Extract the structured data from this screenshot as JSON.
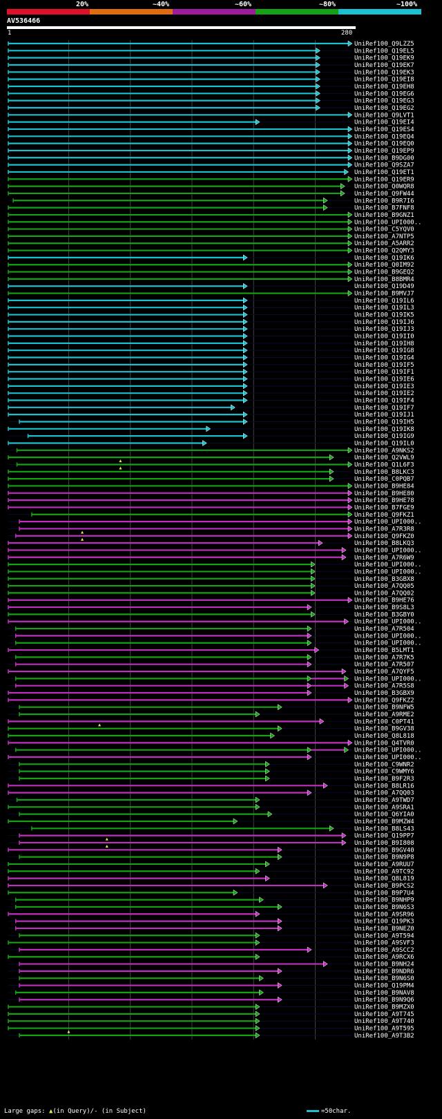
{
  "legend": [
    {
      "label": "20%",
      "color": "#e0102a"
    },
    {
      "label": "~40%",
      "color": "#e06c10"
    },
    {
      "label": "~60%",
      "color": "#9c1c9c"
    },
    {
      "label": "~80%",
      "color": "#15a315"
    },
    {
      "label": "~100%",
      "color": "#1bc1cf"
    }
  ],
  "query": {
    "name": "AV536466",
    "start_label": "1",
    "end_label": "280",
    "length": 280
  },
  "colors": {
    "cyan": "#1bc1cf",
    "green": "#15a315",
    "magenta": "#c02fc0",
    "gap": "#e8e85c",
    "grid": "#444444"
  },
  "grid_lines": [
    50,
    100,
    150,
    200,
    250
  ],
  "hits": [
    {
      "name": "UniRef100_Q9LZZ5",
      "color": "cyan",
      "start": 1,
      "end": 280
    },
    {
      "name": "UniRef100_Q19EL5",
      "color": "cyan",
      "start": 1,
      "end": 254
    },
    {
      "name": "UniRef100_Q19EK9",
      "color": "cyan",
      "start": 1,
      "end": 254
    },
    {
      "name": "UniRef100_Q19EK7",
      "color": "cyan",
      "start": 1,
      "end": 254
    },
    {
      "name": "UniRef100_Q19EK3",
      "color": "cyan",
      "start": 1,
      "end": 254
    },
    {
      "name": "UniRef100_Q19EI8",
      "color": "cyan",
      "start": 1,
      "end": 254
    },
    {
      "name": "UniRef100_Q19EH8",
      "color": "cyan",
      "start": 1,
      "end": 254
    },
    {
      "name": "UniRef100_Q19EG6",
      "color": "cyan",
      "start": 1,
      "end": 254
    },
    {
      "name": "UniRef100_Q19EG3",
      "color": "cyan",
      "start": 1,
      "end": 254
    },
    {
      "name": "UniRef100_Q19EG2",
      "color": "cyan",
      "start": 1,
      "end": 254
    },
    {
      "name": "UniRef100_Q9LVT1",
      "color": "cyan",
      "start": 1,
      "end": 280
    },
    {
      "name": "UniRef100_Q19EI4",
      "color": "cyan",
      "start": 1,
      "end": 205
    },
    {
      "name": "UniRef100_Q19ES4",
      "color": "cyan",
      "start": 1,
      "end": 280
    },
    {
      "name": "UniRef100_Q19EQ4",
      "color": "cyan",
      "start": 1,
      "end": 280
    },
    {
      "name": "UniRef100_Q19EQ0",
      "color": "cyan",
      "start": 1,
      "end": 280
    },
    {
      "name": "UniRef100_Q19EP9",
      "color": "cyan",
      "start": 1,
      "end": 280
    },
    {
      "name": "UniRef100_B9DG00",
      "color": "cyan",
      "start": 1,
      "end": 280
    },
    {
      "name": "UniRef100_Q9SZA7",
      "color": "cyan",
      "start": 1,
      "end": 280
    },
    {
      "name": "UniRef100_Q19ET1",
      "color": "cyan",
      "start": 1,
      "end": 277
    },
    {
      "name": "UniRef100_Q19ER9",
      "color": "green",
      "start": 1,
      "end": 280
    },
    {
      "name": "UniRef100_Q0WQR8",
      "color": "green",
      "start": 1,
      "end": 274
    },
    {
      "name": "UniRef100_Q9FW44",
      "color": "green",
      "start": 1,
      "end": 274
    },
    {
      "name": "UniRef100_B9R7I6",
      "color": "green",
      "start": 5,
      "end": 260
    },
    {
      "name": "UniRef100_B7FNF8",
      "color": "green",
      "start": 1,
      "end": 260
    },
    {
      "name": "UniRef100_B9GNZ1",
      "color": "green",
      "start": 1,
      "end": 280
    },
    {
      "name": "UniRef100_UPI000..",
      "color": "green",
      "start": 1,
      "end": 280
    },
    {
      "name": "UniRef100_C5YQV0",
      "color": "green",
      "start": 1,
      "end": 280
    },
    {
      "name": "UniRef100_A7NTP5",
      "color": "green",
      "start": 1,
      "end": 280
    },
    {
      "name": "UniRef100_A5ARR2",
      "color": "green",
      "start": 1,
      "end": 280
    },
    {
      "name": "UniRef100_Q2QMY3",
      "color": "green",
      "start": 1,
      "end": 280
    },
    {
      "name": "UniRef100_Q19IK6",
      "color": "cyan",
      "start": 1,
      "end": 195
    },
    {
      "name": "UniRef100_Q0IM92",
      "color": "green",
      "start": 1,
      "end": 280
    },
    {
      "name": "UniRef100_B9GEQ2",
      "color": "green",
      "start": 1,
      "end": 280
    },
    {
      "name": "UniRef100_B8BMR4",
      "color": "green",
      "start": 1,
      "end": 280
    },
    {
      "name": "UniRef100_Q19D49",
      "color": "cyan",
      "start": 1,
      "end": 195
    },
    {
      "name": "UniRef100_B9MVJ7",
      "color": "green",
      "start": 1,
      "end": 280
    },
    {
      "name": "UniRef100_Q19IL6",
      "color": "cyan",
      "start": 1,
      "end": 195
    },
    {
      "name": "UniRef100_Q19IL3",
      "color": "cyan",
      "start": 1,
      "end": 195
    },
    {
      "name": "UniRef100_Q19IK5",
      "color": "cyan",
      "start": 1,
      "end": 195
    },
    {
      "name": "UniRef100_Q19IJ6",
      "color": "cyan",
      "start": 1,
      "end": 195
    },
    {
      "name": "UniRef100_Q19IJ3",
      "color": "cyan",
      "start": 1,
      "end": 195
    },
    {
      "name": "UniRef100_Q19II0",
      "color": "cyan",
      "start": 1,
      "end": 195
    },
    {
      "name": "UniRef100_Q19IH8",
      "color": "cyan",
      "start": 1,
      "end": 195
    },
    {
      "name": "UniRef100_Q19IG8",
      "color": "cyan",
      "start": 1,
      "end": 195
    },
    {
      "name": "UniRef100_Q19IG4",
      "color": "cyan",
      "start": 1,
      "end": 195
    },
    {
      "name": "UniRef100_Q19IF5",
      "color": "cyan",
      "start": 1,
      "end": 195
    },
    {
      "name": "UniRef100_Q19IF1",
      "color": "cyan",
      "start": 1,
      "end": 195
    },
    {
      "name": "UniRef100_Q19IE6",
      "color": "cyan",
      "start": 1,
      "end": 195
    },
    {
      "name": "UniRef100_Q19IE3",
      "color": "cyan",
      "start": 1,
      "end": 195
    },
    {
      "name": "UniRef100_Q19IE2",
      "color": "cyan",
      "start": 1,
      "end": 195
    },
    {
      "name": "UniRef100_Q19IF4",
      "color": "cyan",
      "start": 1,
      "end": 195
    },
    {
      "name": "UniRef100_Q19IF7",
      "color": "cyan",
      "start": 1,
      "end": 185
    },
    {
      "name": "UniRef100_Q19IJ1",
      "color": "cyan",
      "start": 1,
      "end": 195
    },
    {
      "name": "UniRef100_Q19IH5",
      "color": "cyan",
      "start": 10,
      "end": 195
    },
    {
      "name": "UniRef100_Q19IK8",
      "color": "cyan",
      "start": 1,
      "end": 165
    },
    {
      "name": "UniRef100_Q19IG9",
      "color": "cyan",
      "start": 17,
      "end": 195
    },
    {
      "name": "UniRef100_Q19IL0",
      "color": "cyan",
      "start": 1,
      "end": 162
    },
    {
      "name": "UniRef100_A9NKS2",
      "color": "green",
      "start": 8,
      "end": 280
    },
    {
      "name": "UniRef100_Q2VWL9",
      "color": "green",
      "start": 1,
      "end": 265,
      "gap": 92
    },
    {
      "name": "UniRef100_Q1L6F3",
      "color": "green",
      "start": 8,
      "end": 280,
      "gap": 92
    },
    {
      "name": "UniRef100_B8LKC3",
      "color": "green",
      "start": 1,
      "end": 265
    },
    {
      "name": "UniRef100_C0PQB7",
      "color": "green",
      "start": 1,
      "end": 265
    },
    {
      "name": "UniRef100_B9HE84",
      "color": "green",
      "start": 1,
      "end": 280
    },
    {
      "name": "UniRef100_B9HE80",
      "color": "magenta",
      "start": 1,
      "end": 280
    },
    {
      "name": "UniRef100_B9HE78",
      "color": "magenta",
      "start": 1,
      "end": 280
    },
    {
      "name": "UniRef100_B7FGE9",
      "color": "magenta",
      "start": 1,
      "end": 280
    },
    {
      "name": "UniRef100_Q9FKZ1",
      "color": "green",
      "start": 20,
      "end": 280
    },
    {
      "name": "UniRef100_UPI000..",
      "color": "magenta",
      "start": 10,
      "end": 280
    },
    {
      "name": "UniRef100_A7R3R8",
      "color": "magenta",
      "start": 10,
      "end": 280,
      "gap": 61
    },
    {
      "name": "UniRef100_Q9FKZ0",
      "color": "magenta",
      "start": 7,
      "end": 280,
      "gap": 61
    },
    {
      "name": "UniRef100_B8LKQ3",
      "color": "magenta",
      "start": 1,
      "end": 256
    },
    {
      "name": "UniRef100_UPI000..",
      "color": "magenta",
      "start": 1,
      "end": 275
    },
    {
      "name": "UniRef100_A7R6W9",
      "color": "magenta",
      "start": 1,
      "end": 275
    },
    {
      "name": "UniRef100_UPI000..",
      "color": "green",
      "start": 1,
      "end": 250
    },
    {
      "name": "UniRef100_UPI000..",
      "color": "green",
      "start": 1,
      "end": 250
    },
    {
      "name": "UniRef100_B3GBX8",
      "color": "green",
      "start": 1,
      "end": 250
    },
    {
      "name": "UniRef100_A7QQ05",
      "color": "green",
      "start": 1,
      "end": 250
    },
    {
      "name": "UniRef100_A7QQ02",
      "color": "green",
      "start": 1,
      "end": 250
    },
    {
      "name": "UniRef100_B9HE76",
      "color": "magenta",
      "start": 1,
      "end": 280
    },
    {
      "name": "UniRef100_B9S8L3",
      "color": "magenta",
      "start": 1,
      "end": 247
    },
    {
      "name": "UniRef100_B3GBY0",
      "color": "green",
      "start": 1,
      "end": 250
    },
    {
      "name": "UniRef100_UPI000..",
      "color": "magenta",
      "start": 1,
      "end": 277
    },
    {
      "name": "UniRef100_A7R504",
      "color": "green",
      "start": 7,
      "end": 247
    },
    {
      "name": "UniRef100_UPI000..",
      "color": "magenta",
      "start": 7,
      "end": 247
    },
    {
      "name": "UniRef100_UPI000..",
      "color": "green",
      "start": 7,
      "end": 247
    },
    {
      "name": "UniRef100_B5LMT1",
      "color": "magenta",
      "start": 1,
      "end": 253
    },
    {
      "name": "UniRef100_A7R7K5",
      "color": "green",
      "start": 7,
      "end": 247
    },
    {
      "name": "UniRef100_A7R507",
      "color": "magenta",
      "start": 7,
      "end": 247
    },
    {
      "name": "UniRef100_A7QYF5",
      "color": "magenta",
      "start": 1,
      "end": 275
    },
    {
      "name": "UniRef100_UPI000..",
      "color": "green",
      "start": 7,
      "end": 247,
      "end2": 277
    },
    {
      "name": "UniRef100_A7R5S8",
      "color": "magenta",
      "start": 7,
      "end": 247,
      "end2": 277
    },
    {
      "name": "UniRef100_B3GBX9",
      "color": "magenta",
      "start": 1,
      "end": 247
    },
    {
      "name": "UniRef100_Q9FKZ2",
      "color": "magenta",
      "start": 1,
      "end": 280
    },
    {
      "name": "UniRef100_B9NFW5",
      "color": "green",
      "start": 10,
      "end": 223
    },
    {
      "name": "UniRef100_A9RME2",
      "color": "green",
      "start": 10,
      "end": 205
    },
    {
      "name": "UniRef100_C0PT41",
      "color": "magenta",
      "start": 1,
      "end": 257,
      "gap": 75
    },
    {
      "name": "UniRef100_B9GV38",
      "color": "green",
      "start": 1,
      "end": 223
    },
    {
      "name": "UniRef100_Q8L818",
      "color": "green",
      "start": 1,
      "end": 217
    },
    {
      "name": "UniRef100_Q4TVR0",
      "color": "magenta",
      "start": 1,
      "end": 280
    },
    {
      "name": "UniRef100_UPI000..",
      "color": "green",
      "start": 7,
      "end": 247,
      "end2": 277
    },
    {
      "name": "UniRef100_UPI000..",
      "color": "magenta",
      "start": 1,
      "end": 247
    },
    {
      "name": "UniRef100_C9WNR2",
      "color": "green",
      "start": 10,
      "end": 213
    },
    {
      "name": "UniRef100_C9WMY6",
      "color": "green",
      "start": 10,
      "end": 213
    },
    {
      "name": "UniRef100_B9F2R3",
      "color": "green",
      "start": 10,
      "end": 213
    },
    {
      "name": "UniRef100_B8LR16",
      "color": "magenta",
      "start": 1,
      "end": 260
    },
    {
      "name": "UniRef100_A7QQ03",
      "color": "magenta",
      "start": 1,
      "end": 247
    },
    {
      "name": "UniRef100_A9TWD7",
      "color": "green",
      "start": 8,
      "end": 205
    },
    {
      "name": "UniRef100_A9SRA1",
      "color": "green",
      "start": 1,
      "end": 205
    },
    {
      "name": "UniRef100_Q6YIA0",
      "color": "green",
      "start": 10,
      "end": 215
    },
    {
      "name": "UniRef100_B9MZW4",
      "color": "green",
      "start": 1,
      "end": 187
    },
    {
      "name": "UniRef100_B8LS43",
      "color": "green",
      "start": 20,
      "end": 265
    },
    {
      "name": "UniRef100_Q19PP7",
      "color": "magenta",
      "start": 10,
      "end": 275,
      "gap": 81
    },
    {
      "name": "UniRef100_B9I808",
      "color": "magenta",
      "start": 10,
      "end": 275,
      "gap": 81
    },
    {
      "name": "UniRef100_B9GV40",
      "color": "magenta",
      "start": 1,
      "end": 223
    },
    {
      "name": "UniRef100_B9N9P8",
      "color": "green",
      "start": 10,
      "end": 223
    },
    {
      "name": "UniRef100_A9RUU7",
      "color": "green",
      "start": 1,
      "end": 213
    },
    {
      "name": "UniRef100_A9TC92",
      "color": "green",
      "start": 1,
      "end": 205
    },
    {
      "name": "UniRef100_Q8L819",
      "color": "magenta",
      "start": 1,
      "end": 213
    },
    {
      "name": "UniRef100_B9PCS2",
      "color": "magenta",
      "start": 1,
      "end": 260
    },
    {
      "name": "UniRef100_B9P7U4",
      "color": "green",
      "start": 1,
      "end": 187
    },
    {
      "name": "UniRef100_B9NHP9",
      "color": "green",
      "start": 7,
      "end": 208
    },
    {
      "name": "UniRef100_B9N6S3",
      "color": "green",
      "start": 7,
      "end": 223
    },
    {
      "name": "UniRef100_A9SR96",
      "color": "magenta",
      "start": 1,
      "end": 205
    },
    {
      "name": "UniRef100_Q19PK3",
      "color": "magenta",
      "start": 7,
      "end": 223
    },
    {
      "name": "UniRef100_B9NEZ0",
      "color": "magenta",
      "start": 7,
      "end": 223
    },
    {
      "name": "UniRef100_A9T594",
      "color": "green",
      "start": 10,
      "end": 205
    },
    {
      "name": "UniRef100_A9SVF3",
      "color": "green",
      "start": 1,
      "end": 205
    },
    {
      "name": "UniRef100_A9SCC2",
      "color": "magenta",
      "start": 10,
      "end": 247
    },
    {
      "name": "UniRef100_A9RCX6",
      "color": "green",
      "start": 1,
      "end": 205
    },
    {
      "name": "UniRef100_B9NH24",
      "color": "magenta",
      "start": 10,
      "end": 260
    },
    {
      "name": "UniRef100_B9NDR6",
      "color": "magenta",
      "start": 10,
      "end": 223
    },
    {
      "name": "UniRef100_B9N6S0",
      "color": "green",
      "start": 10,
      "end": 208
    },
    {
      "name": "UniRef100_Q19PM4",
      "color": "magenta",
      "start": 10,
      "end": 223
    },
    {
      "name": "UniRef100_B9NAV8",
      "color": "green",
      "start": 7,
      "end": 208
    },
    {
      "name": "UniRef100_B9N9Q6",
      "color": "magenta",
      "start": 10,
      "end": 223
    },
    {
      "name": "UniRef100_B9MZX0",
      "color": "green",
      "start": 1,
      "end": 205
    },
    {
      "name": "UniRef100_A9T745",
      "color": "green",
      "start": 1,
      "end": 205
    },
    {
      "name": "UniRef100_A9T740",
      "color": "green",
      "start": 1,
      "end": 205
    },
    {
      "name": "UniRef100_A9T595",
      "color": "green",
      "start": 1,
      "end": 205,
      "gap": 50
    },
    {
      "name": "UniRef100_A9T3B2",
      "color": "green",
      "start": 10,
      "end": 205
    }
  ],
  "footer": {
    "text": "Large gaps:",
    "query_gap": "(in Query)/",
    "subject_gap": "- (in Subject)",
    "scale_label": "=50char."
  }
}
